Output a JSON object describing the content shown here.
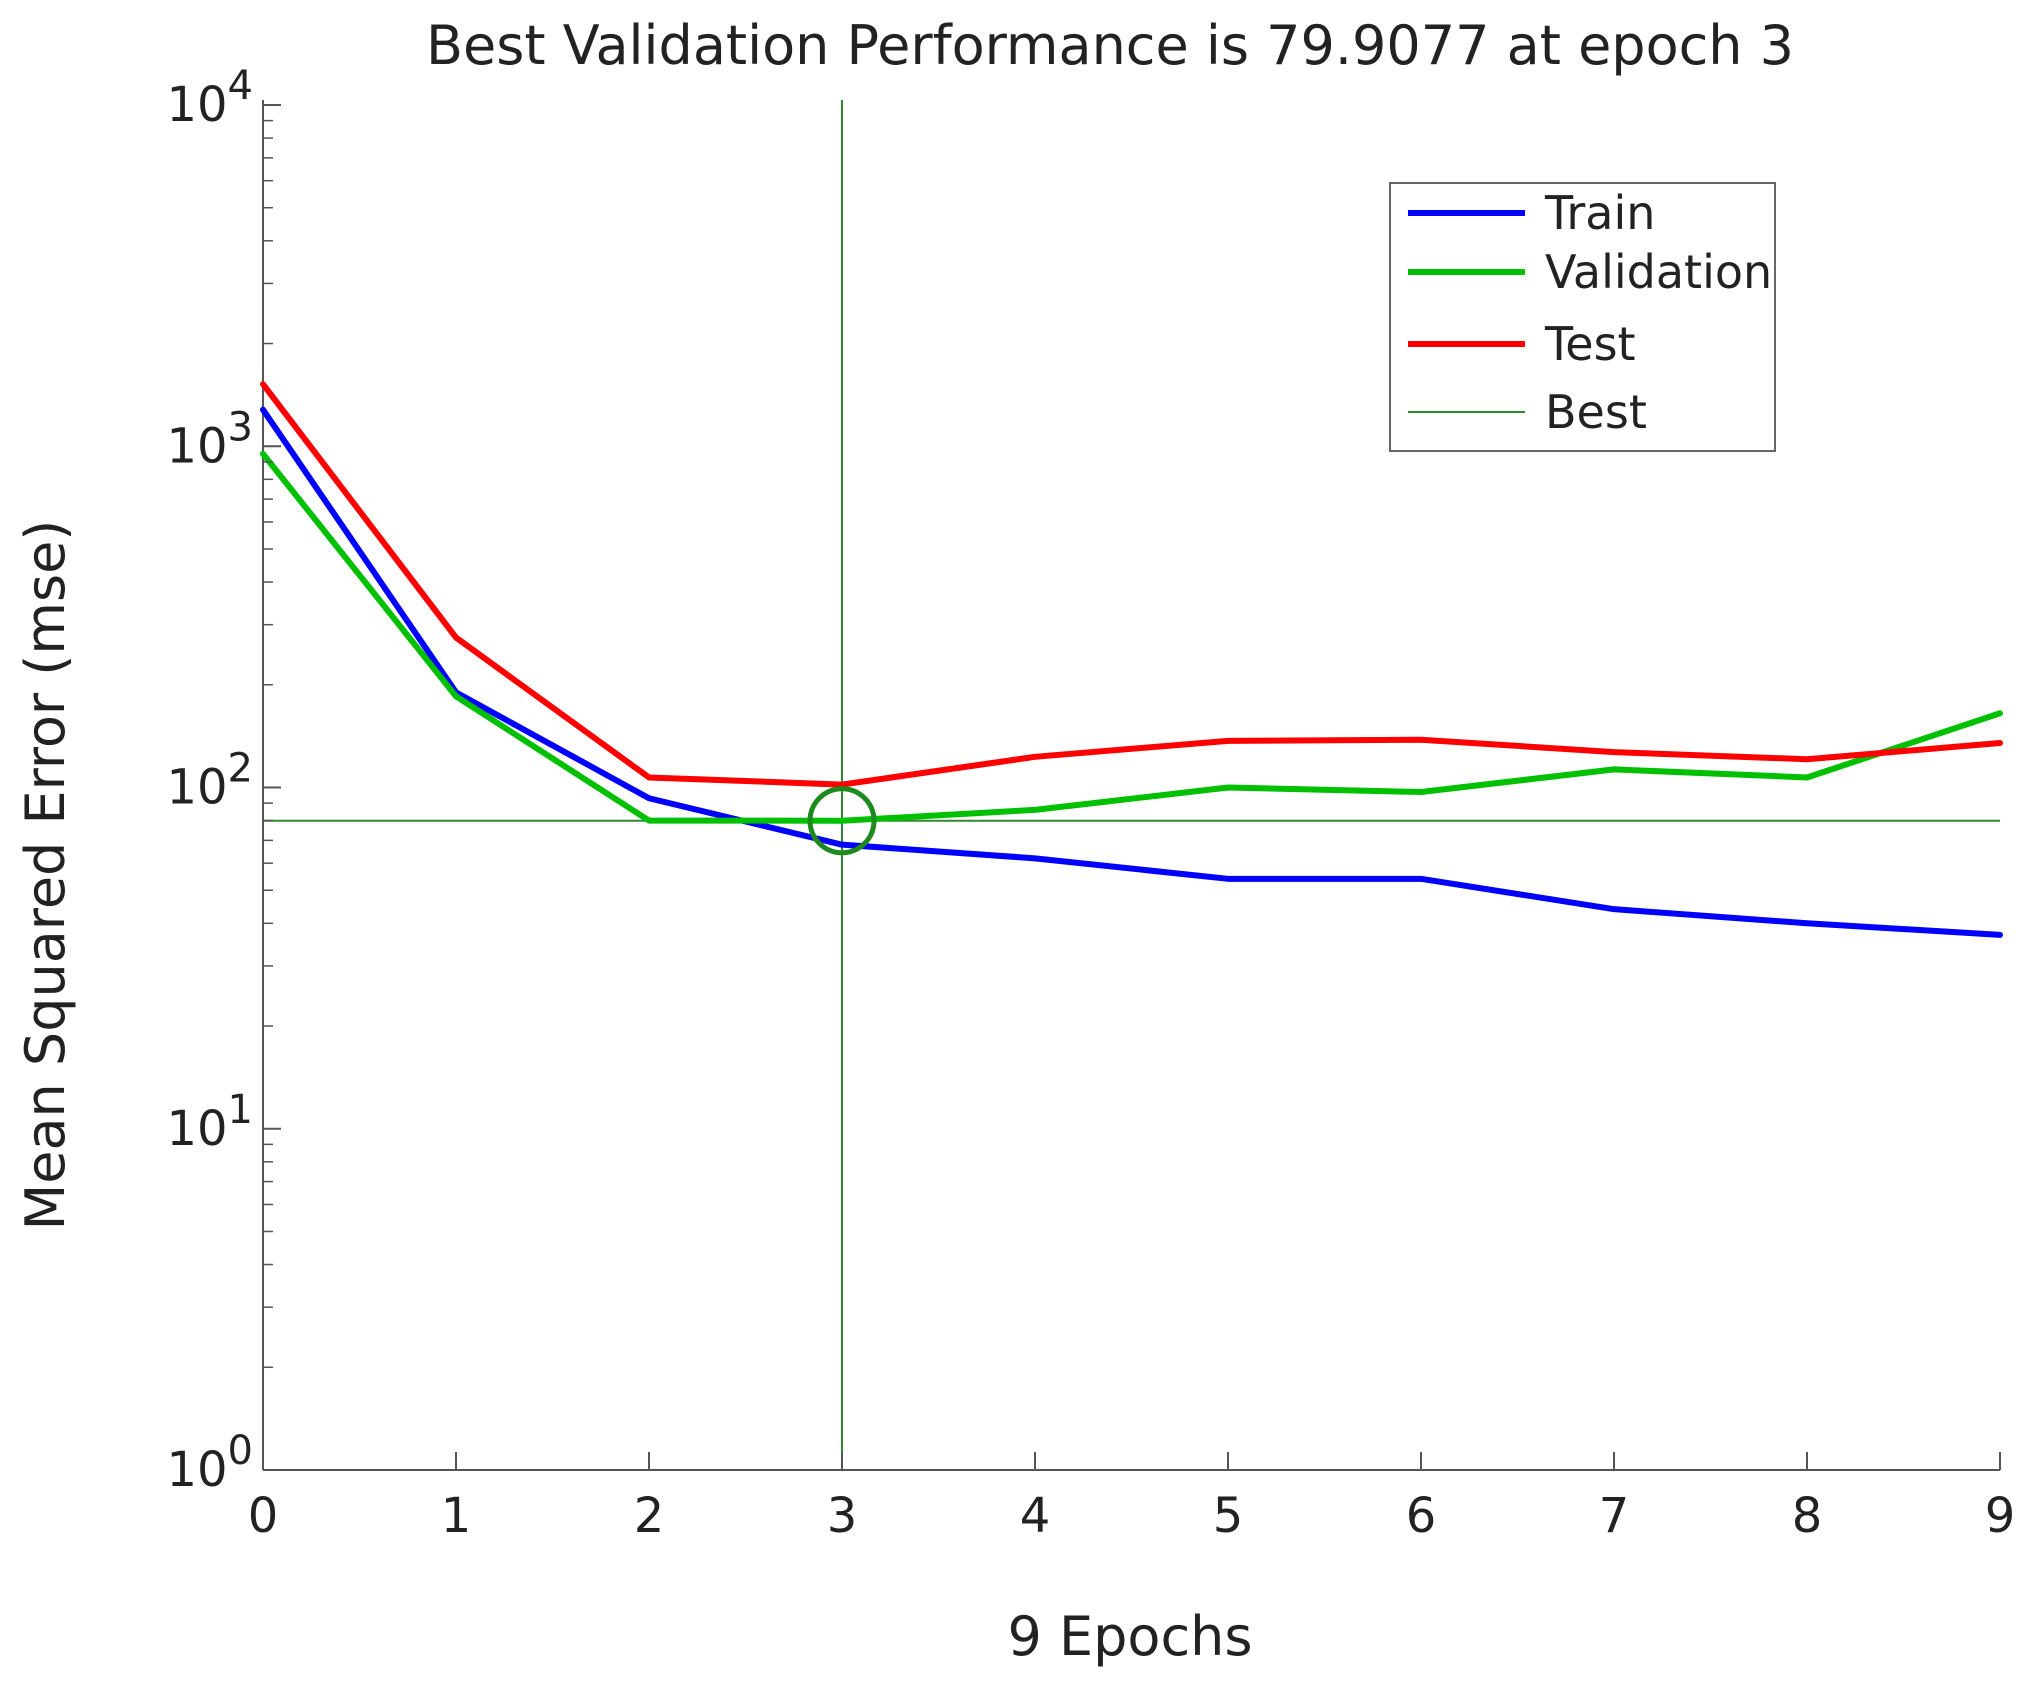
{
  "chart_data": {
    "type": "line",
    "title": "Best Validation Performance is 79.9077 at epoch 3",
    "xlabel": "9 Epochs",
    "ylabel": "Mean Squared Error  (mse)",
    "yscale": "log",
    "xlim": [
      0,
      9
    ],
    "ylim": [
      1,
      10000
    ],
    "xticks": [
      "0",
      "1",
      "2",
      "3",
      "4",
      "5",
      "6",
      "7",
      "8",
      "9"
    ],
    "yticks": [
      {
        "base": "10",
        "exp": "0"
      },
      {
        "base": "10",
        "exp": "1"
      },
      {
        "base": "10",
        "exp": "2"
      },
      {
        "base": "10",
        "exp": "3"
      },
      {
        "base": "10",
        "exp": "4"
      }
    ],
    "x": [
      0,
      1,
      2,
      3,
      4,
      5,
      6,
      7,
      8,
      9
    ],
    "series": [
      {
        "name": "Train",
        "color": "#0000ff",
        "values": [
          1280,
          190,
          93,
          68,
          62,
          54,
          54,
          44,
          40,
          37
        ]
      },
      {
        "name": "Validation",
        "color": "#00c000",
        "values": [
          950,
          185,
          80,
          79.9077,
          86,
          100,
          97,
          113,
          107,
          165
        ]
      },
      {
        "name": "Test",
        "color": "#ff0000",
        "values": [
          1520,
          275,
          107,
          102,
          123,
          137,
          138,
          127,
          121,
          135
        ]
      }
    ],
    "best": {
      "name": "Best",
      "epoch": 3,
      "value": 79.9077,
      "color": "#2e8b2e"
    },
    "legend": {
      "position": "top-right",
      "entries": [
        "Train",
        "Validation",
        "Test",
        "Best"
      ]
    },
    "grid": false
  }
}
